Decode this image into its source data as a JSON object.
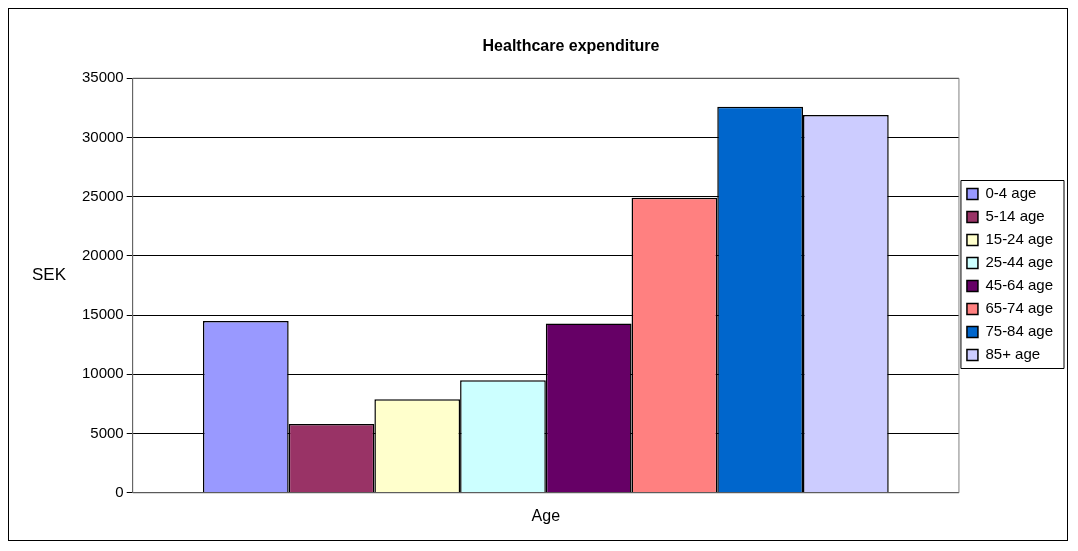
{
  "chart_data": {
    "type": "bar",
    "title": "Healthcare expenditure",
    "xlabel": "Age",
    "ylabel": "SEK",
    "categories": [
      null
    ],
    "series": [
      {
        "name": "0-4 age",
        "color": "#9999ff",
        "values": [
          14500
        ]
      },
      {
        "name": "5-14 age",
        "color": "#993366",
        "values": [
          5800
        ]
      },
      {
        "name": "15-24 age",
        "color": "#ffffcc",
        "values": [
          7900
        ]
      },
      {
        "name": "25-44 age",
        "color": "#ccffff",
        "values": [
          9500
        ]
      },
      {
        "name": "45-64 age",
        "color": "#660066",
        "values": [
          14300
        ]
      },
      {
        "name": "65-74 age",
        "color": "#ff8080",
        "values": [
          24900
        ]
      },
      {
        "name": "75-84 age",
        "color": "#0066cc",
        "values": [
          32600
        ]
      },
      {
        "name": "85+ age",
        "color": "#ccccff",
        "values": [
          31900
        ]
      }
    ],
    "ylim": [
      0,
      35000
    ],
    "yticks": [
      0,
      5000,
      10000,
      15000,
      20000,
      25000,
      30000,
      35000
    ],
    "grid": "y",
    "legend": "right",
    "tick_labels": "y"
  }
}
